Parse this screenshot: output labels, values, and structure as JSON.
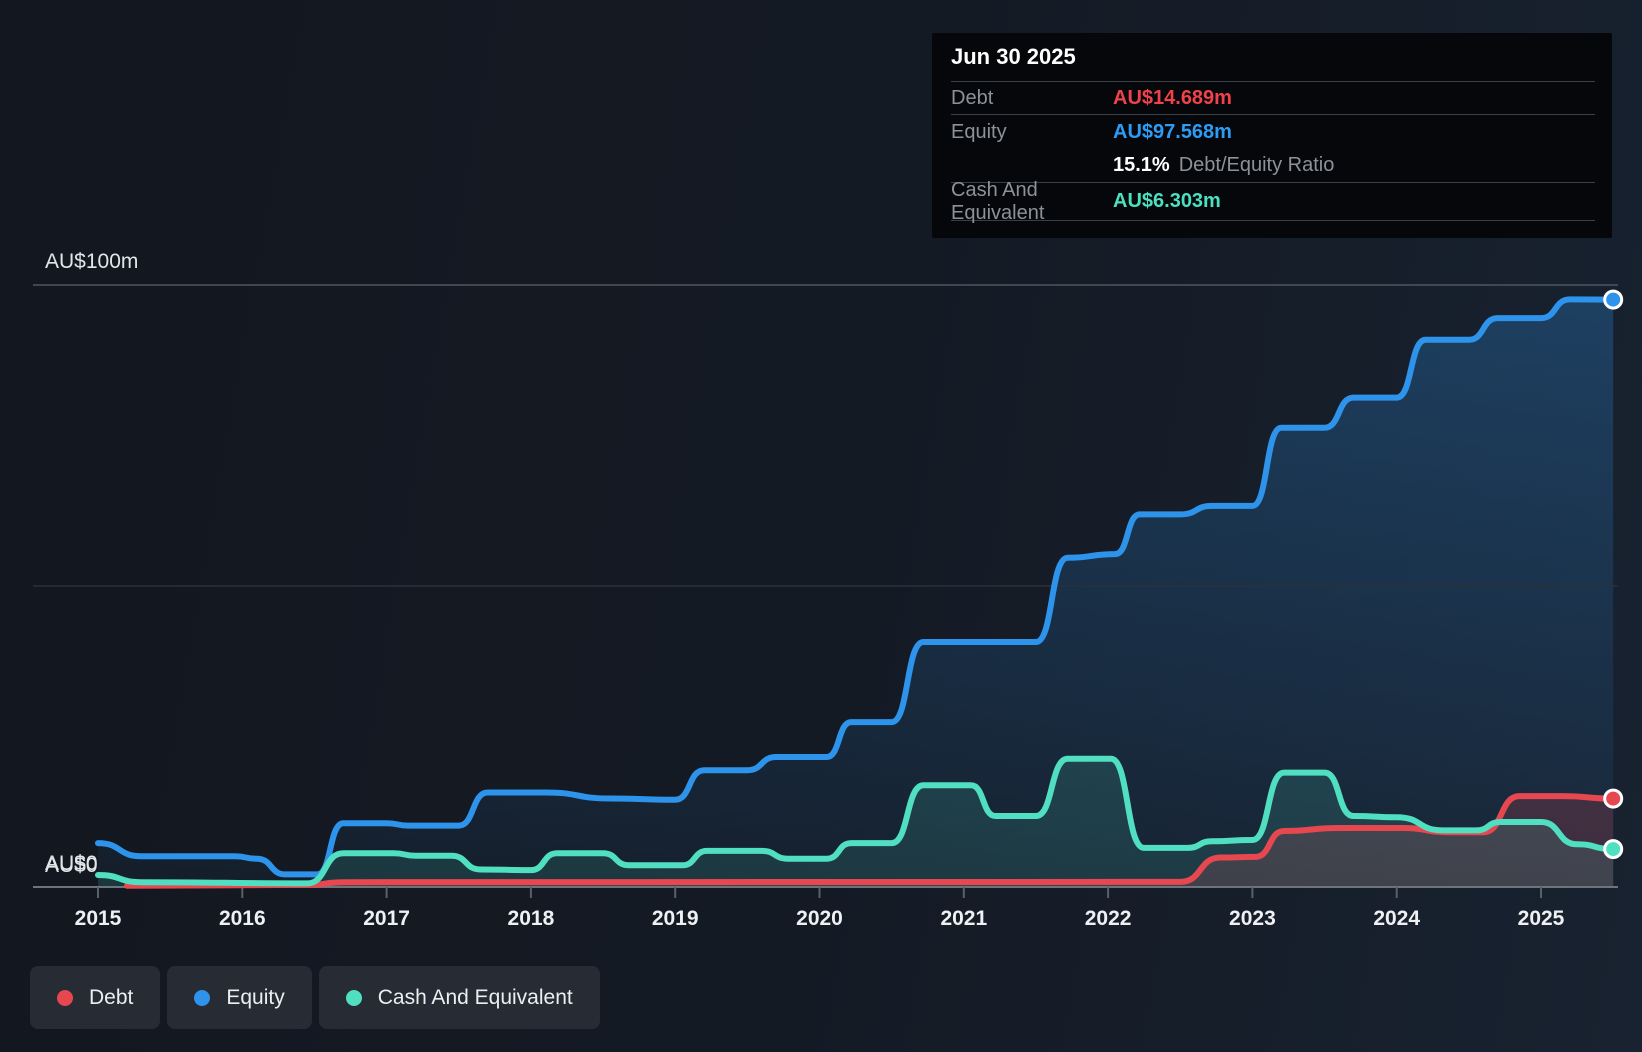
{
  "tooltip": {
    "date": "Jun 30 2025",
    "debt_label": "Debt",
    "debt_value": "AU$14.689m",
    "debt_color": "#f0424b",
    "equity_label": "Equity",
    "equity_value": "AU$97.568m",
    "equity_color": "#2d9cf4",
    "ratio_value": "15.1%",
    "ratio_label": "Debt/Equity Ratio",
    "cash_label": "Cash And Equivalent",
    "cash_value": "AU$6.303m",
    "cash_color": "#4ae0c0"
  },
  "legend": {
    "items": [
      {
        "label": "Debt",
        "color": "#e7474f"
      },
      {
        "label": "Equity",
        "color": "#2e93ea"
      },
      {
        "label": "Cash And Equivalent",
        "color": "#50dfc0"
      }
    ]
  },
  "chart_data": {
    "type": "area",
    "title": "",
    "unit": "AU$ millions",
    "xlabel": "",
    "ylabel": "",
    "ylim": [
      0,
      100
    ],
    "x_ticks": [
      "2015",
      "2016",
      "2017",
      "2018",
      "2019",
      "2020",
      "2021",
      "2022",
      "2023",
      "2024",
      "2025"
    ],
    "y_gridlines": [
      {
        "value": 100,
        "label": "AU$100m"
      },
      {
        "value": 50,
        "label": ""
      },
      {
        "value": 0,
        "label": "AU$0"
      }
    ],
    "series": [
      {
        "name": "Equity",
        "color": "#2e93ea",
        "end_value": 97.568,
        "points": [
          [
            2015.0,
            7.3
          ],
          [
            2015.3,
            5.1
          ],
          [
            2015.95,
            5.1
          ],
          [
            2016.1,
            4.7
          ],
          [
            2016.3,
            2.1
          ],
          [
            2016.52,
            2.1
          ],
          [
            2016.7,
            10.6
          ],
          [
            2017.0,
            10.6
          ],
          [
            2017.15,
            10.2
          ],
          [
            2017.5,
            10.2
          ],
          [
            2017.7,
            15.7
          ],
          [
            2018.1,
            15.7
          ],
          [
            2018.55,
            14.7
          ],
          [
            2019.0,
            14.5
          ],
          [
            2019.2,
            19.4
          ],
          [
            2019.5,
            19.4
          ],
          [
            2019.7,
            21.6
          ],
          [
            2020.05,
            21.6
          ],
          [
            2020.22,
            27.4
          ],
          [
            2020.5,
            27.4
          ],
          [
            2020.72,
            40.7
          ],
          [
            2021.5,
            40.7
          ],
          [
            2021.72,
            54.7
          ],
          [
            2022.05,
            55.3
          ],
          [
            2022.22,
            61.9
          ],
          [
            2022.5,
            61.9
          ],
          [
            2022.72,
            63.3
          ],
          [
            2023.0,
            63.3
          ],
          [
            2023.2,
            76.3
          ],
          [
            2023.5,
            76.3
          ],
          [
            2023.7,
            81.3
          ],
          [
            2024.0,
            81.3
          ],
          [
            2024.2,
            90.9
          ],
          [
            2024.5,
            90.9
          ],
          [
            2024.7,
            94.5
          ],
          [
            2025.0,
            94.5
          ],
          [
            2025.2,
            97.6
          ],
          [
            2025.5,
            97.568
          ]
        ]
      },
      {
        "name": "Debt",
        "color": "#e7474f",
        "end_value": 14.689,
        "points": [
          [
            2015.2,
            0.2
          ],
          [
            2016.45,
            0.35
          ],
          [
            2016.7,
            0.8
          ],
          [
            2022.5,
            0.85
          ],
          [
            2022.78,
            4.9
          ],
          [
            2023.02,
            5.0
          ],
          [
            2023.22,
            9.3
          ],
          [
            2023.6,
            9.8
          ],
          [
            2024.05,
            9.8
          ],
          [
            2024.35,
            9.1
          ],
          [
            2024.6,
            9.1
          ],
          [
            2024.85,
            15.1
          ],
          [
            2025.15,
            15.1
          ],
          [
            2025.5,
            14.689
          ]
        ]
      },
      {
        "name": "Cash And Equivalent",
        "color": "#50dfc0",
        "end_value": 6.303,
        "points": [
          [
            2015.0,
            2.0
          ],
          [
            2015.3,
            0.8
          ],
          [
            2016.45,
            0.6
          ],
          [
            2016.7,
            5.6
          ],
          [
            2017.05,
            5.6
          ],
          [
            2017.2,
            5.2
          ],
          [
            2017.45,
            5.2
          ],
          [
            2017.65,
            2.9
          ],
          [
            2018.0,
            2.8
          ],
          [
            2018.18,
            5.6
          ],
          [
            2018.5,
            5.6
          ],
          [
            2018.68,
            3.6
          ],
          [
            2019.05,
            3.6
          ],
          [
            2019.22,
            6.0
          ],
          [
            2019.6,
            6.0
          ],
          [
            2019.78,
            4.7
          ],
          [
            2020.05,
            4.7
          ],
          [
            2020.22,
            7.3
          ],
          [
            2020.5,
            7.3
          ],
          [
            2020.72,
            16.9
          ],
          [
            2021.05,
            16.9
          ],
          [
            2021.22,
            11.8
          ],
          [
            2021.5,
            11.8
          ],
          [
            2021.72,
            21.3
          ],
          [
            2022.02,
            21.3
          ],
          [
            2022.25,
            6.5
          ],
          [
            2022.55,
            6.5
          ],
          [
            2022.72,
            7.6
          ],
          [
            2023.0,
            7.8
          ],
          [
            2023.22,
            19.0
          ],
          [
            2023.5,
            19.0
          ],
          [
            2023.7,
            11.8
          ],
          [
            2024.0,
            11.6
          ],
          [
            2024.32,
            9.4
          ],
          [
            2024.55,
            9.4
          ],
          [
            2024.72,
            10.8
          ],
          [
            2025.0,
            10.8
          ],
          [
            2025.25,
            7.1
          ],
          [
            2025.5,
            6.303
          ]
        ]
      }
    ]
  }
}
